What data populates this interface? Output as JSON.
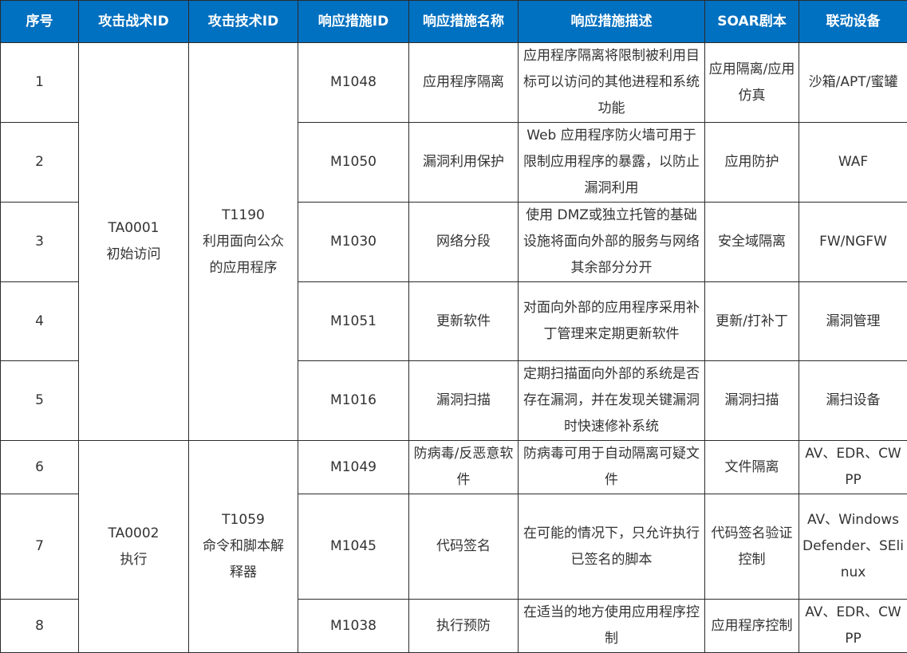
{
  "header": {
    "colors": {
      "header_bg": "#0070c0",
      "header_text": "#ffffff",
      "body_text": "#333333"
    },
    "columns": [
      "序号",
      "攻击战术ID",
      "攻击技术ID",
      "响应措施ID",
      "响应措施名称",
      "响应措施描述",
      "SOAR剧本",
      "联动设备"
    ]
  },
  "groups": [
    {
      "tactic_id": "TA0001",
      "tactic_name": "初始访问",
      "technique_id": "T1190",
      "technique_name": "利用面向公众的应用程序"
    },
    {
      "tactic_id": "TA0002",
      "tactic_name": "执行",
      "technique_id": "T1059",
      "technique_name": "命令和脚本解释器"
    }
  ],
  "rows": [
    {
      "no": "1",
      "mid": "M1048",
      "name": "应用程序隔离",
      "desc": "应用程序隔离将限制被利用目标可以访问的其他进程和系统功能",
      "soar": "应用隔离/应用仿真",
      "device": "沙箱/APT/蜜罐"
    },
    {
      "no": "2",
      "mid": "M1050",
      "name": "漏洞利用保护",
      "desc": "Web 应用程序防火墙可用于限制应用程序的暴露，以防止漏洞利用",
      "soar": "应用防护",
      "device": "WAF"
    },
    {
      "no": "3",
      "mid": "M1030",
      "name": "网络分段",
      "desc": "使用 DMZ或独立托管的基础设施将面向外部的服务与网络其余部分分开",
      "soar": "安全域隔离",
      "device": "FW/NGFW"
    },
    {
      "no": "4",
      "mid": "M1051",
      "name": "更新软件",
      "desc": "对面向外部的应用程序采用补丁管理来定期更新软件",
      "soar": "更新/打补丁",
      "device": "漏洞管理"
    },
    {
      "no": "5",
      "mid": "M1016",
      "name": "漏洞扫描",
      "desc": "定期扫描面向外部的系统是否存在漏洞，并在发现关键漏洞时快速修补系统",
      "soar": "漏洞扫描",
      "device": "漏扫设备"
    },
    {
      "no": "6",
      "mid": "M1049",
      "name": "防病毒/反恶意软件",
      "desc": "防病毒可用于自动隔离可疑文件",
      "soar": "文件隔离",
      "device": "AV、EDR、CWPP"
    },
    {
      "no": "7",
      "mid": "M1045",
      "name": "代码签名",
      "desc": "在可能的情况下，只允许执行已签名的脚本",
      "soar": "代码签名验证控制",
      "device": "AV、Windows Defender、SElinux"
    },
    {
      "no": "8",
      "mid": "M1038",
      "name": "执行预防",
      "desc": "在适当的地方使用应用程序控制",
      "soar": "应用程序控制",
      "device": "AV、EDR、CWPP"
    }
  ]
}
